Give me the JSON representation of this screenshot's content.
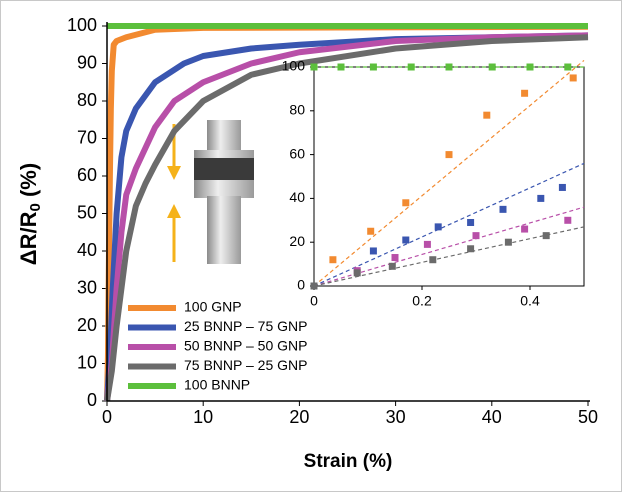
{
  "chart_data": [
    {
      "type": "line",
      "xlabel": "Strain (%)",
      "ylabel": [
        "ΔR/R",
        "0",
        " (%)"
      ],
      "xlim": [
        0,
        50
      ],
      "ylim": [
        0,
        100
      ],
      "xticks": [
        0,
        10,
        20,
        30,
        40,
        50
      ],
      "yticks": [
        0,
        10,
        20,
        30,
        40,
        50,
        60,
        70,
        80,
        90,
        100
      ],
      "legend": "lower left",
      "series": [
        {
          "name": "100 GNP",
          "color": "#f28a30",
          "x": [
            0,
            0.1,
            0.2,
            0.3,
            0.4,
            0.5,
            0.7,
            1,
            2,
            5,
            10,
            50
          ],
          "values": [
            0,
            12,
            38,
            60,
            78,
            88,
            95,
            96,
            97,
            99,
            99.5,
            99.8
          ]
        },
        {
          "name": "25 BNNP – 75 GNP",
          "color": "#3a56b0",
          "x": [
            0,
            0.3,
            0.6,
            1,
            1.5,
            2,
            3,
            5,
            8,
            10,
            15,
            20,
            30,
            40,
            50
          ],
          "values": [
            0,
            12,
            30,
            50,
            65,
            72,
            78,
            85,
            90,
            92,
            94,
            95,
            96.5,
            97,
            97.5
          ]
        },
        {
          "name": "50 BNNP – 50 GNP",
          "color": "#b84fa8",
          "x": [
            0,
            0.5,
            1,
            1.5,
            2,
            3,
            5,
            7,
            10,
            15,
            20,
            30,
            40,
            50
          ],
          "values": [
            0,
            10,
            30,
            45,
            55,
            62,
            73,
            80,
            85,
            90,
            93,
            96,
            97,
            97.5
          ]
        },
        {
          "name": "75 BNNP – 25 GNP",
          "color": "#6b6b6b",
          "x": [
            0,
            0.5,
            1,
            2,
            3,
            4,
            5,
            7,
            10,
            15,
            20,
            30,
            40,
            50
          ],
          "values": [
            0,
            8,
            20,
            40,
            52,
            58,
            63,
            72,
            80,
            87,
            90,
            94,
            96,
            97
          ]
        },
        {
          "name": "100 BNNP",
          "color": "#5cbf3c",
          "x": [
            0,
            0.5,
            50
          ],
          "values": [
            100,
            100,
            100
          ]
        }
      ]
    },
    {
      "type": "scatter",
      "xlim": [
        0,
        0.5
      ],
      "ylim": [
        0,
        100
      ],
      "xticks": [
        0,
        0.2,
        0.4
      ],
      "yticks": [
        0,
        20,
        40,
        60,
        80,
        100
      ],
      "series": [
        {
          "color": "#f28a30",
          "x": [
            0,
            0.035,
            0.105,
            0.17,
            0.25,
            0.32,
            0.39,
            0.48
          ],
          "values": [
            0,
            12,
            25,
            38,
            60,
            78,
            88,
            95
          ],
          "trend": [
            0,
            103
          ]
        },
        {
          "color": "#3a56b0",
          "x": [
            0,
            0.11,
            0.17,
            0.23,
            0.29,
            0.35,
            0.42,
            0.46
          ],
          "values": [
            0,
            16,
            21,
            27,
            29,
            35,
            40,
            45
          ],
          "trend": [
            0,
            56
          ]
        },
        {
          "color": "#b84fa8",
          "x": [
            0,
            0.08,
            0.15,
            0.21,
            0.3,
            0.39,
            0.47
          ],
          "values": [
            0,
            7,
            13,
            19,
            23,
            26,
            30
          ],
          "trend": [
            0,
            36
          ]
        },
        {
          "color": "#6b6b6b",
          "x": [
            0,
            0.08,
            0.145,
            0.22,
            0.29,
            0.36,
            0.43
          ],
          "values": [
            0,
            6,
            9,
            12,
            17,
            20,
            23
          ],
          "trend": [
            0,
            27
          ]
        },
        {
          "color": "#5cbf3c",
          "x": [
            0,
            0.05,
            0.11,
            0.18,
            0.25,
            0.33,
            0.4,
            0.47
          ],
          "values": [
            100,
            100,
            100,
            100,
            100,
            100,
            100,
            100
          ],
          "trend": [
            100,
            100
          ]
        }
      ]
    }
  ]
}
